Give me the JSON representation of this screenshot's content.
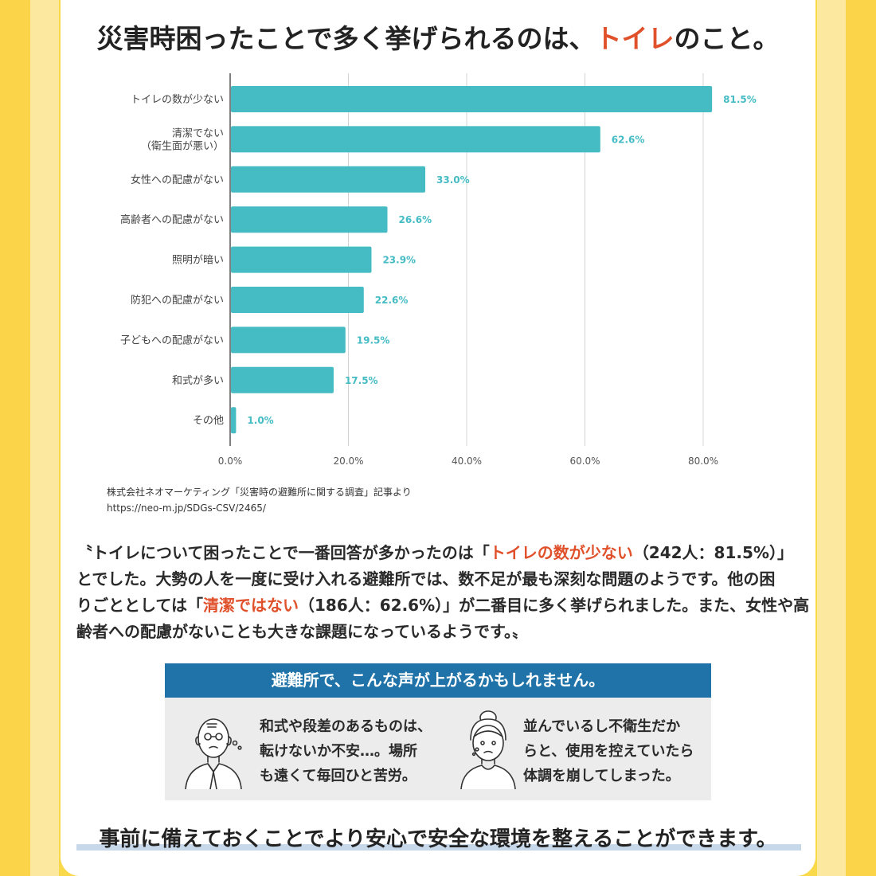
{
  "title": {
    "prefix": "災害時困ったことで多く挙げられるのは、",
    "accent": "トイレ",
    "suffix": "のこと。"
  },
  "colors": {
    "bar": "#45bcc4",
    "value_label": "#45bcc4",
    "accent": "#e0502a",
    "voice_header": "#1f73a8",
    "underline": "#c7d8ea"
  },
  "chart_data": {
    "type": "bar",
    "orientation": "horizontal",
    "categories": [
      [
        "トイレの数が少ない"
      ],
      [
        "清潔でない",
        "（衛生面が悪い）"
      ],
      [
        "女性への配慮がない"
      ],
      [
        "高齢者への配慮がない"
      ],
      [
        "照明が暗い"
      ],
      [
        "防犯への配慮がない"
      ],
      [
        "子どもへの配慮がない"
      ],
      [
        "和式が多い"
      ],
      [
        "その他"
      ]
    ],
    "values": [
      81.5,
      62.6,
      33.0,
      26.6,
      23.9,
      22.6,
      19.5,
      17.5,
      1.0
    ],
    "value_labels": [
      "81.5%",
      "62.6%",
      "33.0%",
      "26.6%",
      "23.9%",
      "22.6%",
      "19.5%",
      "17.5%",
      "1.0%"
    ],
    "xticks": [
      0,
      20,
      40,
      60,
      80
    ],
    "xtick_labels": [
      "0.0%",
      "20.0%",
      "40.0%",
      "60.0%",
      "80.0%"
    ],
    "xlim": [
      0,
      80
    ],
    "grid": true,
    "title": "",
    "xlabel": "",
    "ylabel": ""
  },
  "source": {
    "line1": "株式会社ネオマーケティング「災害時の避難所に関する調査」記事より",
    "line2": "https://neo-m.jp/SDGs-CSV/2465/"
  },
  "body": {
    "p1_a": "〝トイレについて困ったことで一番回答が多かったのは「",
    "p1_hl": "トイレの数が少ない",
    "p1_b": "（242人：81.5%）」",
    "p2": "とでした。大勢の人を一度に受け入れる避難所では、数不足が最も深刻な問題のようです。他の困",
    "p3_a": "りごととしては「",
    "p3_hl": "清潔ではない",
    "p3_b": "（186人：62.6%）」が二番目に多く挙げられました。また、女性や高",
    "p4": "齢者への配慮がないことも大きな課題になっているようです。〟"
  },
  "voices": {
    "header": "避難所で、こんな声が上がるかもしれません。",
    "left": [
      "和式や段差のあるものは、",
      "転けないか不安…。場所",
      "も遠くて毎回ひと苦労。"
    ],
    "right": [
      "並んでいるし不衛生だか",
      "らと、使用を控えていたら",
      "体調を崩してしまった。"
    ]
  },
  "conclusion": "事前に備えておくことでより安心で安全な環境を整えることができます。"
}
